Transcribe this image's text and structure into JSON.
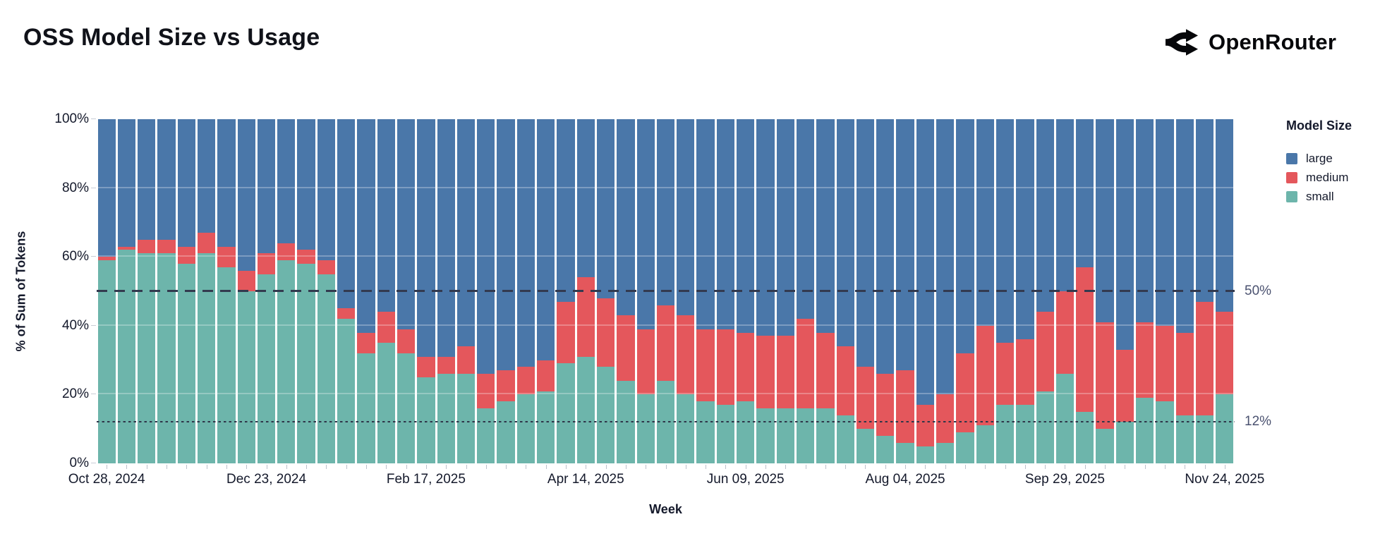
{
  "header": {
    "title": "OSS Model Size vs Usage",
    "brand": "OpenRouter"
  },
  "chart_data": {
    "type": "bar",
    "stacked": true,
    "stack_order_bottom_to_top": [
      "small",
      "medium",
      "large"
    ],
    "title": "OSS Model Size vs Usage",
    "xlabel": "Week",
    "ylabel": "% of Sum of Tokens",
    "ylim": [
      0,
      100
    ],
    "grid": true,
    "y_ticks": [
      "0%",
      "20%",
      "40%",
      "60%",
      "80%",
      "100%"
    ],
    "y_tick_values": [
      0,
      20,
      40,
      60,
      80,
      100
    ],
    "x": [
      "2024-10-28",
      "2024-11-04",
      "2024-11-11",
      "2024-11-18",
      "2024-11-25",
      "2024-12-02",
      "2024-12-09",
      "2024-12-16",
      "2024-12-23",
      "2024-12-30",
      "2025-01-06",
      "2025-01-13",
      "2025-01-20",
      "2025-01-27",
      "2025-02-03",
      "2025-02-10",
      "2025-02-17",
      "2025-02-24",
      "2025-03-03",
      "2025-03-10",
      "2025-03-17",
      "2025-03-24",
      "2025-03-31",
      "2025-04-07",
      "2025-04-14",
      "2025-04-21",
      "2025-04-28",
      "2025-05-05",
      "2025-05-12",
      "2025-05-19",
      "2025-05-26",
      "2025-06-02",
      "2025-06-09",
      "2025-06-16",
      "2025-06-23",
      "2025-06-30",
      "2025-07-07",
      "2025-07-14",
      "2025-07-21",
      "2025-07-28",
      "2025-08-04",
      "2025-08-11",
      "2025-08-18",
      "2025-08-25",
      "2025-09-01",
      "2025-09-08",
      "2025-09-15",
      "2025-09-22",
      "2025-09-29",
      "2025-10-06",
      "2025-10-13",
      "2025-10-20",
      "2025-10-27",
      "2025-11-03",
      "2025-11-10",
      "2025-11-17",
      "2025-11-24"
    ],
    "x_major_ticks": [
      {
        "index": 0,
        "label": "Oct 28, 2024"
      },
      {
        "index": 8,
        "label": "Dec 23, 2024"
      },
      {
        "index": 16,
        "label": "Feb 17, 2025"
      },
      {
        "index": 24,
        "label": "Apr 14, 2025"
      },
      {
        "index": 32,
        "label": "Jun 09, 2025"
      },
      {
        "index": 40,
        "label": "Aug 04, 2025"
      },
      {
        "index": 48,
        "label": "Sep 29, 2025"
      },
      {
        "index": 56,
        "label": "Nov 24, 2025"
      }
    ],
    "series": [
      {
        "name": "large",
        "color": "#4a77a9",
        "values": [
          40,
          37,
          35,
          35,
          37,
          33,
          37,
          44,
          39,
          36,
          38,
          41,
          55,
          62,
          56,
          61,
          69,
          69,
          66,
          74,
          73,
          72,
          70,
          53,
          46,
          52,
          57,
          61,
          54,
          57,
          61,
          61,
          62,
          63,
          63,
          58,
          62,
          66,
          72,
          74,
          73,
          83,
          80,
          68,
          60,
          65,
          64,
          56,
          50,
          43,
          59,
          67,
          59,
          60,
          62,
          53,
          56
        ]
      },
      {
        "name": "medium",
        "color": "#e4575c",
        "values": [
          1,
          1,
          4,
          4,
          5,
          6,
          6,
          6,
          6,
          5,
          4,
          4,
          3,
          6,
          9,
          7,
          6,
          5,
          8,
          10,
          9,
          8,
          9,
          18,
          23,
          20,
          19,
          19,
          22,
          23,
          21,
          22,
          20,
          21,
          21,
          26,
          22,
          20,
          18,
          18,
          21,
          12,
          14,
          23,
          29,
          18,
          19,
          23,
          24,
          42,
          31,
          21,
          22,
          22,
          24,
          33,
          24
        ]
      },
      {
        "name": "small",
        "color": "#6db5ab",
        "values": [
          59,
          62,
          61,
          61,
          58,
          61,
          57,
          50,
          55,
          59,
          58,
          55,
          42,
          32,
          35,
          32,
          25,
          26,
          26,
          16,
          18,
          20,
          21,
          29,
          31,
          28,
          24,
          20,
          24,
          20,
          18,
          17,
          18,
          16,
          16,
          16,
          16,
          14,
          10,
          8,
          6,
          5,
          6,
          9,
          11,
          17,
          17,
          21,
          26,
          15,
          10,
          12,
          19,
          18,
          14,
          14,
          20
        ]
      }
    ],
    "annotations": [
      {
        "label": "50%",
        "y": 50,
        "style": "dashed"
      },
      {
        "label": "12%",
        "y": 12,
        "style": "dotted"
      }
    ],
    "legend": {
      "title": "Model Size",
      "position": "right",
      "entries": [
        "large",
        "medium",
        "small"
      ]
    }
  }
}
